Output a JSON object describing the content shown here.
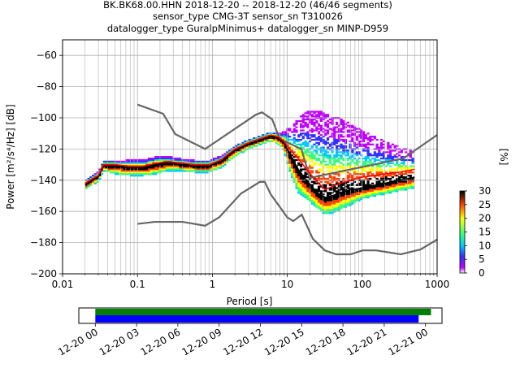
{
  "chart_data": [
    {
      "type": "heatmap",
      "title_lines": [
        "BK.BK68.00.HHN   2018-12-20 -- 2018-12-20  (46/46 segments)",
        "sensor_type CMG-3T sensor_sn T310026",
        "datalogger_type GuralpMinimus+ datalogger_sn MINP-D959"
      ],
      "xlabel": "Period [s]",
      "ylabel": "Power [m²/s⁴/Hz] [dB]",
      "xscale": "log",
      "xlim": [
        0.01,
        1000
      ],
      "ylim": [
        -200,
        -50
      ],
      "grid": true,
      "x_ticks": [
        {
          "v": 0.01,
          "label": "0.01"
        },
        {
          "v": 0.1,
          "label": "0.1"
        },
        {
          "v": 1,
          "label": "1"
        },
        {
          "v": 10,
          "label": "10"
        },
        {
          "v": 100,
          "label": "100"
        },
        {
          "v": 1000,
          "label": "1000"
        }
      ],
      "y_ticks": [
        {
          "v": -60,
          "label": "−60"
        },
        {
          "v": -80,
          "label": "−80"
        },
        {
          "v": -100,
          "label": "−100"
        },
        {
          "v": -120,
          "label": "−120"
        },
        {
          "v": -140,
          "label": "−140"
        },
        {
          "v": -160,
          "label": "−160"
        },
        {
          "v": -180,
          "label": "−180"
        },
        {
          "v": -200,
          "label": "−200"
        }
      ],
      "series": [
        {
          "name": "NHNM",
          "role": "noise-model-high",
          "color": "#666666",
          "x": [
            0.1,
            0.22,
            0.32,
            0.8,
            3.8,
            4.6,
            6.3,
            7.9,
            15.4,
            20,
            354.8,
            1000
          ],
          "y": [
            -91.5,
            -97.4,
            -110.5,
            -120,
            -98,
            -96.5,
            -101,
            -113.5,
            -120,
            -138.5,
            -126,
            -111
          ]
        },
        {
          "name": "NLNM",
          "role": "noise-model-low",
          "color": "#666666",
          "x": [
            0.1,
            0.17,
            0.4,
            0.8,
            1.24,
            2.4,
            4.3,
            5,
            6,
            10,
            12,
            15.6,
            21.9,
            31.6,
            45,
            70,
            101,
            154,
            328,
            600,
            1000
          ],
          "y": [
            -168,
            -166.7,
            -166.7,
            -169.2,
            -163.7,
            -148.6,
            -141.1,
            -141.1,
            -149,
            -163.8,
            -166.2,
            -162.1,
            -177.5,
            -185,
            -187.5,
            -187.5,
            -185,
            -185,
            -187.5,
            -184.4,
            -178
          ]
        },
        {
          "name": "median",
          "role": "statistic",
          "color": "#000000",
          "x": [
            0.02,
            0.025,
            0.03,
            0.035,
            0.05,
            0.08,
            0.12,
            0.18,
            0.25,
            0.4,
            0.6,
            0.9,
            1.3,
            2,
            3,
            4.5,
            6,
            7.5,
            9,
            11,
            14,
            18,
            25,
            32,
            40,
            50,
            70,
            100,
            150,
            200,
            300,
            400,
            500
          ],
          "y": [
            -143,
            -140,
            -138,
            -131,
            -131,
            -132,
            -132,
            -130,
            -129,
            -130,
            -131,
            -131,
            -128,
            -121,
            -117,
            -114,
            -112,
            -113,
            -116,
            -124,
            -133,
            -140,
            -148,
            -151,
            -150,
            -148,
            -146,
            -145,
            -143,
            -142,
            -140,
            -139,
            -138
          ]
        },
        {
          "name": "mean",
          "role": "statistic",
          "color": "#ff0000",
          "x": [
            0.02,
            0.025,
            0.03,
            0.035,
            0.05,
            0.08,
            0.12,
            0.18,
            0.25,
            0.4,
            0.6,
            0.9,
            1.3,
            2,
            3,
            4.5,
            6,
            7.5,
            9,
            11,
            14,
            18,
            25,
            32,
            40,
            50,
            70,
            100,
            150,
            200,
            300,
            400,
            500
          ],
          "y": [
            -142,
            -139,
            -137,
            -130,
            -130,
            -131,
            -131,
            -129,
            -128,
            -129,
            -130,
            -130,
            -127,
            -120,
            -116,
            -113,
            -111,
            -112,
            -115,
            -121,
            -126,
            -133,
            -141,
            -146,
            -144,
            -142,
            -140,
            -138,
            -137,
            -136,
            -135,
            -134,
            -133
          ]
        }
      ],
      "pdf_spread": {
        "x": [
          0.02,
          0.025,
          0.03,
          0.035,
          0.05,
          0.08,
          0.12,
          0.18,
          0.25,
          0.4,
          0.6,
          0.9,
          1.3,
          2,
          3,
          4.5,
          6,
          7.5,
          9,
          11,
          14,
          18,
          25,
          32,
          40,
          50,
          70,
          100,
          150,
          200,
          300,
          400,
          500,
          600
        ],
        "y_low": [
          -146,
          -143,
          -141,
          -134,
          -136,
          -137,
          -137,
          -136,
          -134,
          -134,
          -135,
          -135,
          -132,
          -125,
          -120,
          -117,
          -115,
          -117,
          -121,
          -136,
          -148,
          -152,
          -158,
          -162,
          -161,
          -159,
          -156,
          -152,
          -150,
          -149,
          -147,
          -146,
          -145,
          -144
        ],
        "y_high": [
          -140,
          -137,
          -134,
          -128,
          -128,
          -126,
          -126,
          -124,
          -124,
          -126,
          -127,
          -127,
          -124,
          -118,
          -114,
          -111,
          -109,
          -110,
          -108,
          -106,
          -100,
          -96,
          -95,
          -96,
          -98,
          -100,
          -104,
          -108,
          -112,
          -115,
          -118,
          -120,
          -121,
          -134
        ],
        "color_stops": [
          {
            "v": 0,
            "color": "#ffffff"
          },
          {
            "v": 2,
            "color": "#c000ff"
          },
          {
            "v": 6,
            "color": "#3030ff"
          },
          {
            "v": 10,
            "color": "#00c8ff"
          },
          {
            "v": 14,
            "color": "#30ff80"
          },
          {
            "v": 20,
            "color": "#ffff00"
          },
          {
            "v": 25,
            "color": "#ff4000"
          },
          {
            "v": 30,
            "color": "#000000"
          }
        ]
      },
      "colorbar": {
        "label": "[%]",
        "range": [
          0,
          30
        ],
        "ticks": [
          "0",
          "5",
          "10",
          "15",
          "20",
          "25",
          "30"
        ]
      }
    },
    {
      "type": "timeline",
      "x_ticks": [
        "12-20 00",
        "12-20 03",
        "12-20 06",
        "12-20 09",
        "12-20 12",
        "12-20 15",
        "12-20 18",
        "12-20 21",
        "12-21 00"
      ],
      "x_range_hours": [
        -1.2,
        25.2
      ],
      "bars": [
        {
          "name": "data coverage",
          "start_h": 0,
          "end_h": 24.4,
          "color": "#008000"
        },
        {
          "name": "used segments",
          "start_h": 0,
          "end_h": 23.5,
          "color": "#0000ff"
        }
      ]
    }
  ]
}
